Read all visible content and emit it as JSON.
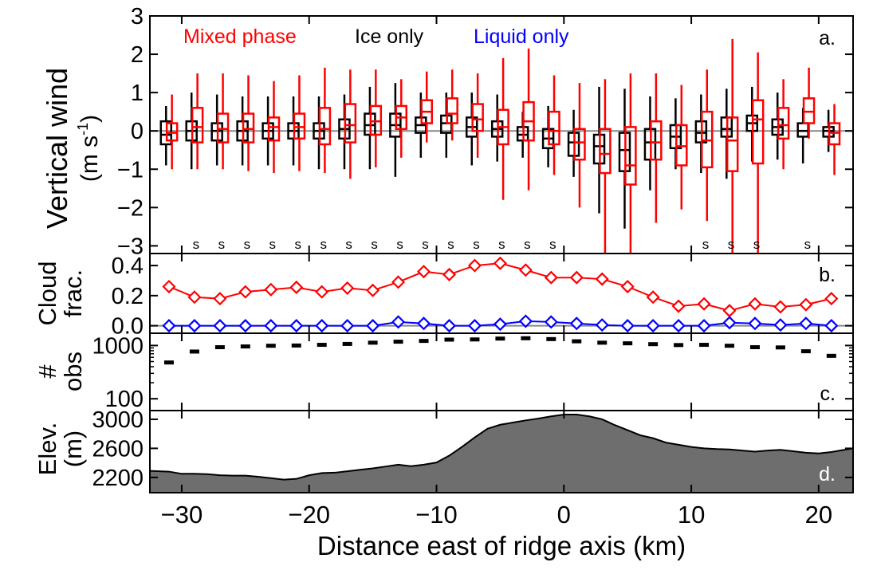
{
  "chart_data": [
    {
      "id": "a",
      "type": "boxplot",
      "panel_label": "a.",
      "ylabel_line1": "Vertical wind",
      "ylabel_line2_main": "(m s",
      "ylabel_line2_sup": "-1",
      "ylabel_line2_end": ")",
      "ylim": [
        -3.2,
        3.0
      ],
      "yticks": [
        -3,
        -2,
        -1,
        0,
        1,
        2,
        3
      ],
      "ytick_labels": [
        "−3",
        "−2",
        "−1",
        "0",
        "1",
        "2",
        "3"
      ],
      "zero_line": true,
      "legend": [
        {
          "label": "Mixed phase",
          "color": "#ff0000"
        },
        {
          "label": "Ice only",
          "color": "#000000"
        },
        {
          "label": "Liquid only",
          "color": "#0000ff"
        }
      ],
      "significance_marker": "s",
      "significant_at_x": [
        -29,
        -27,
        -25,
        -23,
        -21,
        -19,
        -17,
        -15,
        -13,
        -11,
        -9,
        -7,
        -5,
        -3,
        -1,
        11,
        13,
        15,
        19
      ],
      "series": [
        {
          "name": "Ice only",
          "color": "#000000",
          "boxes": [
            {
              "x": -31,
              "min": -0.9,
              "q1": -0.35,
              "median": -0.1,
              "q3": 0.25,
              "max": 0.65
            },
            {
              "x": -29,
              "min": -1.0,
              "q1": -0.25,
              "median": 0.0,
              "q3": 0.25,
              "max": 1.0
            },
            {
              "x": -27,
              "min": -0.9,
              "q1": -0.25,
              "median": 0.0,
              "q3": 0.2,
              "max": 0.95
            },
            {
              "x": -25,
              "min": -0.9,
              "q1": -0.25,
              "median": 0.0,
              "q3": 0.25,
              "max": 0.9
            },
            {
              "x": -23,
              "min": -0.9,
              "q1": -0.2,
              "median": 0.0,
              "q3": 0.2,
              "max": 0.9
            },
            {
              "x": -21,
              "min": -0.9,
              "q1": -0.2,
              "median": 0.0,
              "q3": 0.2,
              "max": 0.9
            },
            {
              "x": -19,
              "min": -1.0,
              "q1": -0.2,
              "median": 0.0,
              "q3": 0.2,
              "max": 0.9
            },
            {
              "x": -17,
              "min": -1.0,
              "q1": -0.2,
              "median": 0.05,
              "q3": 0.3,
              "max": 0.95
            },
            {
              "x": -15,
              "min": -1.0,
              "q1": -0.1,
              "median": 0.15,
              "q3": 0.45,
              "max": 1.15
            },
            {
              "x": -13,
              "min": -1.2,
              "q1": -0.15,
              "median": 0.15,
              "q3": 0.45,
              "max": 1.25
            },
            {
              "x": -11,
              "min": -0.7,
              "q1": -0.05,
              "median": 0.15,
              "q3": 0.35,
              "max": 1.0
            },
            {
              "x": -9,
              "min": -0.7,
              "q1": -0.05,
              "median": 0.2,
              "q3": 0.4,
              "max": 1.0
            },
            {
              "x": -7,
              "min": -0.9,
              "q1": -0.15,
              "median": 0.1,
              "q3": 0.35,
              "max": 1.0
            },
            {
              "x": -5,
              "min": -0.8,
              "q1": -0.15,
              "median": 0.05,
              "q3": 0.25,
              "max": 0.95
            },
            {
              "x": -3,
              "min": -0.7,
              "q1": -0.25,
              "median": -0.1,
              "q3": 0.1,
              "max": 0.5
            },
            {
              "x": -1,
              "min": -0.95,
              "q1": -0.45,
              "median": -0.2,
              "q3": 0.05,
              "max": 0.65
            },
            {
              "x": 1,
              "min": -1.2,
              "q1": -0.65,
              "median": -0.3,
              "q3": -0.05,
              "max": 0.55
            },
            {
              "x": 3,
              "min": -2.15,
              "q1": -0.85,
              "median": -0.4,
              "q3": -0.1,
              "max": 1.15
            },
            {
              "x": 5,
              "min": -2.55,
              "q1": -1.05,
              "median": -0.5,
              "q3": -0.05,
              "max": 1.1
            },
            {
              "x": 7,
              "min": -1.55,
              "q1": -0.75,
              "median": -0.3,
              "q3": 0.05,
              "max": 0.9
            },
            {
              "x": 9,
              "min": -1.0,
              "q1": -0.45,
              "median": -0.15,
              "q3": 0.15,
              "max": 0.85
            },
            {
              "x": 11,
              "min": -1.1,
              "q1": -0.3,
              "median": -0.05,
              "q3": 0.25,
              "max": 0.95
            },
            {
              "x": 13,
              "min": -1.25,
              "q1": -0.15,
              "median": 0.05,
              "q3": 0.35,
              "max": 1.1
            },
            {
              "x": 15,
              "min": -0.8,
              "q1": 0.0,
              "median": 0.2,
              "q3": 0.4,
              "max": 1.15
            },
            {
              "x": 17,
              "min": -0.75,
              "q1": -0.1,
              "median": 0.1,
              "q3": 0.3,
              "max": 1.0
            },
            {
              "x": 19,
              "min": -0.85,
              "q1": -0.15,
              "median": 0.0,
              "q3": 0.2,
              "max": 0.6
            },
            {
              "x": 21,
              "min": -0.55,
              "q1": -0.15,
              "median": 0.0,
              "q3": 0.1,
              "max": 0.55
            }
          ]
        },
        {
          "name": "Mixed phase",
          "color": "#ff0000",
          "boxes": [
            {
              "x": -31,
              "min": -1.0,
              "q1": -0.25,
              "median": -0.05,
              "q3": 0.2,
              "max": 0.95
            },
            {
              "x": -29,
              "min": -1.0,
              "q1": -0.3,
              "median": 0.1,
              "q3": 0.6,
              "max": 1.5
            },
            {
              "x": -27,
              "min": -1.0,
              "q1": -0.3,
              "median": 0.05,
              "q3": 0.45,
              "max": 1.5
            },
            {
              "x": -25,
              "min": -1.05,
              "q1": -0.3,
              "median": 0.05,
              "q3": 0.45,
              "max": 1.45
            },
            {
              "x": -23,
              "min": -1.1,
              "q1": -0.25,
              "median": 0.1,
              "q3": 0.35,
              "max": 1.3
            },
            {
              "x": -21,
              "min": -1.05,
              "q1": -0.2,
              "median": 0.1,
              "q3": 0.45,
              "max": 1.45
            },
            {
              "x": -19,
              "min": -1.1,
              "q1": -0.35,
              "median": 0.05,
              "q3": 0.6,
              "max": 1.65
            },
            {
              "x": -17,
              "min": -1.25,
              "q1": -0.3,
              "median": 0.15,
              "q3": 0.7,
              "max": 1.6
            },
            {
              "x": -15,
              "min": -0.95,
              "q1": -0.1,
              "median": 0.25,
              "q3": 0.65,
              "max": 1.6
            },
            {
              "x": -13,
              "min": -0.7,
              "q1": 0.05,
              "median": 0.35,
              "q3": 0.65,
              "max": 1.35
            },
            {
              "x": -11,
              "min": -0.3,
              "q1": 0.2,
              "median": 0.5,
              "q3": 0.8,
              "max": 1.55
            },
            {
              "x": -9,
              "min": -0.25,
              "q1": 0.2,
              "median": 0.45,
              "q3": 0.85,
              "max": 1.6
            },
            {
              "x": -7,
              "min": -0.7,
              "q1": 0.0,
              "median": 0.3,
              "q3": 0.7,
              "max": 1.5
            },
            {
              "x": -5,
              "min": -1.8,
              "q1": -0.35,
              "median": 0.1,
              "q3": 0.55,
              "max": 1.9
            },
            {
              "x": -3,
              "min": -1.55,
              "q1": -0.25,
              "median": 0.25,
              "q3": 0.75,
              "max": 2.15
            },
            {
              "x": -1,
              "min": -1.15,
              "q1": -0.35,
              "median": 0.0,
              "q3": 0.5,
              "max": 1.45
            },
            {
              "x": 1,
              "min": -2.0,
              "q1": -0.75,
              "median": -0.3,
              "q3": 0.05,
              "max": 1.25
            },
            {
              "x": 3,
              "min": -3.2,
              "q1": -1.1,
              "median": -0.6,
              "q3": 0.05,
              "max": 1.35
            },
            {
              "x": 5,
              "min": -3.2,
              "q1": -1.4,
              "median": -0.9,
              "q3": 0.1,
              "max": 1.5
            },
            {
              "x": 7,
              "min": -2.4,
              "q1": -0.75,
              "median": -0.3,
              "q3": 0.25,
              "max": 1.5
            },
            {
              "x": 9,
              "min": -2.05,
              "q1": -0.9,
              "median": -0.4,
              "q3": 0.15,
              "max": 1.2
            },
            {
              "x": 11,
              "min": -2.35,
              "q1": -0.95,
              "median": -0.25,
              "q3": 0.5,
              "max": 1.6
            },
            {
              "x": 13,
              "min": -3.2,
              "q1": -1.05,
              "median": -0.25,
              "q3": 0.35,
              "max": 2.4
            },
            {
              "x": 15,
              "min": -3.2,
              "q1": -0.85,
              "median": 0.3,
              "q3": 0.8,
              "max": 2.05
            },
            {
              "x": 17,
              "min": -1.0,
              "q1": -0.2,
              "median": 0.15,
              "q3": 0.6,
              "max": 1.35
            },
            {
              "x": 19,
              "min": -0.2,
              "q1": 0.2,
              "median": 0.5,
              "q3": 0.85,
              "max": 1.65
            },
            {
              "x": 21,
              "min": -1.15,
              "q1": -0.35,
              "median": -0.05,
              "q3": 0.2,
              "max": 0.7
            }
          ]
        }
      ]
    },
    {
      "id": "b",
      "type": "line",
      "panel_label": "b.",
      "ylabel_line1": "Cloud",
      "ylabel_line2": "frac.",
      "ylim": [
        -0.05,
        0.48
      ],
      "yticks": [
        0.0,
        0.2,
        0.4
      ],
      "ytick_labels": [
        "0.0",
        "0.2",
        "0.4"
      ],
      "zero_line": true,
      "marker": "diamond",
      "x": [
        -31,
        -29,
        -27,
        -25,
        -23,
        -21,
        -19,
        -17,
        -15,
        -13,
        -11,
        -9,
        -7,
        -5,
        -3,
        -1,
        1,
        3,
        5,
        7,
        9,
        11,
        13,
        15,
        17,
        19,
        21
      ],
      "series": [
        {
          "name": "Mixed phase",
          "color": "#ff0000",
          "values": [
            0.26,
            0.19,
            0.18,
            0.225,
            0.24,
            0.255,
            0.225,
            0.25,
            0.235,
            0.29,
            0.36,
            0.34,
            0.4,
            0.415,
            0.37,
            0.32,
            0.32,
            0.31,
            0.26,
            0.19,
            0.13,
            0.145,
            0.1,
            0.145,
            0.125,
            0.14,
            0.18
          ]
        },
        {
          "name": "Liquid only",
          "color": "#0000ff",
          "values": [
            0.0,
            0.0,
            0.0,
            0.0,
            0.0,
            0.0,
            0.0,
            0.0,
            0.0,
            0.025,
            0.015,
            0.0,
            0.0,
            0.01,
            0.03,
            0.025,
            0.015,
            0.005,
            0.0,
            0.0,
            0.0,
            0.0,
            0.02,
            0.015,
            0.005,
            0.015,
            0.0
          ]
        }
      ]
    },
    {
      "id": "c",
      "type": "scatter",
      "panel_label": "c.",
      "ylabel_line1": "#",
      "ylabel_line2": "obs",
      "yscale": "log",
      "ylim": [
        60,
        1700
      ],
      "yticks": [
        100,
        1000
      ],
      "ytick_labels": [
        "100",
        "1000"
      ],
      "marker": "dash",
      "x": [
        -31,
        -29,
        -27,
        -25,
        -23,
        -21,
        -19,
        -17,
        -15,
        -13,
        -11,
        -9,
        -7,
        -5,
        -3,
        -1,
        1,
        3,
        5,
        7,
        9,
        11,
        13,
        15,
        17,
        19,
        21
      ],
      "values": [
        480,
        770,
        930,
        960,
        990,
        1000,
        1030,
        1070,
        1130,
        1180,
        1220,
        1290,
        1300,
        1350,
        1370,
        1320,
        1200,
        1130,
        1100,
        1060,
        1020,
        1030,
        990,
        930,
        920,
        780,
        640
      ]
    },
    {
      "id": "d",
      "type": "area",
      "panel_label": "d.",
      "ylabel_line1": "Elev.",
      "ylabel_line2": "(m)",
      "ylim": [
        1990,
        3120
      ],
      "yticks": [
        2200,
        2600,
        3000
      ],
      "ytick_labels": [
        "2200",
        "2600",
        "3000"
      ],
      "fill_color": "#6e6e6e",
      "x": [
        -32.5,
        -31,
        -30,
        -29,
        -28,
        -27,
        -26,
        -25,
        -24,
        -23,
        -22,
        -21,
        -20,
        -19,
        -18,
        -17,
        -16,
        -15,
        -14,
        -13,
        -12,
        -11,
        -10,
        -9,
        -8,
        -7,
        -6,
        -5,
        -4,
        -3,
        -2,
        -1,
        0,
        1,
        2,
        3,
        4,
        5,
        6,
        7,
        8,
        9,
        10,
        11,
        12,
        13,
        14,
        15,
        16,
        17,
        18,
        19,
        20,
        21,
        22,
        22.7
      ],
      "values": [
        2290,
        2280,
        2250,
        2250,
        2245,
        2230,
        2225,
        2225,
        2210,
        2190,
        2170,
        2180,
        2230,
        2260,
        2265,
        2285,
        2305,
        2325,
        2350,
        2375,
        2355,
        2375,
        2405,
        2500,
        2620,
        2750,
        2870,
        2925,
        2955,
        2985,
        3010,
        3040,
        3065,
        3065,
        3040,
        3000,
        2920,
        2850,
        2780,
        2740,
        2680,
        2650,
        2620,
        2600,
        2590,
        2585,
        2570,
        2555,
        2570,
        2580,
        2560,
        2540,
        2530,
        2550,
        2580,
        2600
      ]
    }
  ],
  "shared_x": {
    "xlabel": "Distance east of ridge axis (km)",
    "xlim": [
      -32.5,
      22.7
    ],
    "xticks": [
      -30,
      -20,
      -10,
      0,
      10,
      20
    ],
    "xtick_labels": [
      "−30",
      "−20",
      "−10",
      "0",
      "10",
      "20"
    ]
  }
}
